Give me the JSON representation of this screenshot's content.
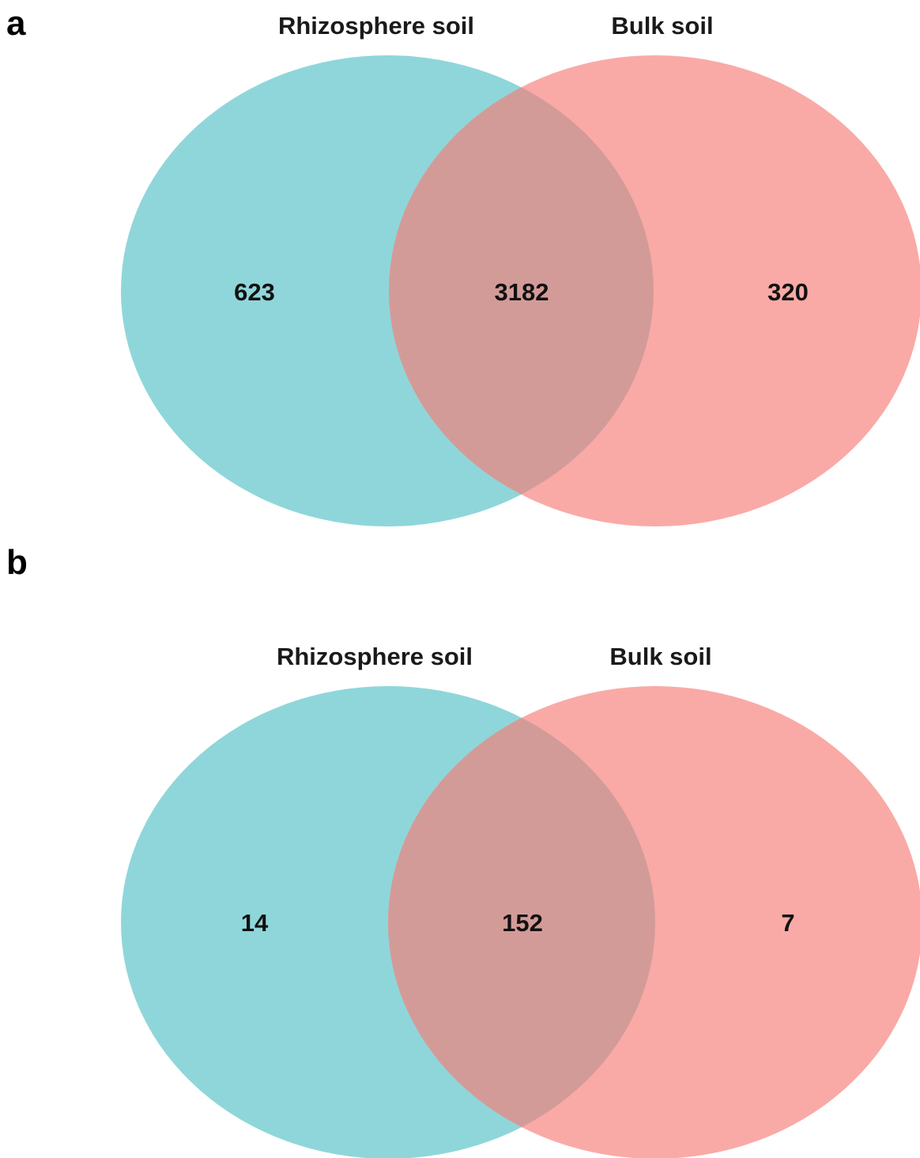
{
  "colors": {
    "rhizosphere": "#8fd6da",
    "bulk": "#f9aaa6",
    "overlap": "#d39b98"
  },
  "panels": [
    {
      "letter": "a",
      "sets": [
        "Rhizosphere soil",
        "Bulk soil"
      ],
      "counts": {
        "left_only": "623",
        "shared": "3182",
        "right_only": "320"
      }
    },
    {
      "letter": "b",
      "sets": [
        "Rhizosphere soil",
        "Bulk soil"
      ],
      "counts": {
        "left_only": "14",
        "shared": "152",
        "right_only": "7"
      }
    }
  ]
}
